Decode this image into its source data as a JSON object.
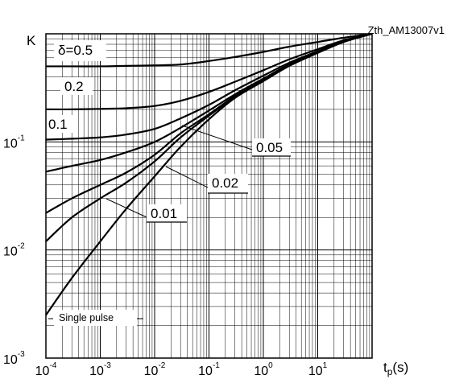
{
  "chart_data": {
    "type": "line",
    "id_label": "Zth_AM13007v1",
    "ylabel": "K",
    "xlabel": "tp(s)",
    "x_scale": "log",
    "y_scale": "log",
    "xlim": [
      0.0001,
      100
    ],
    "ylim": [
      0.001,
      1
    ],
    "grid": true,
    "x_ticks": [
      {
        "base": "10",
        "exp": "-4"
      },
      {
        "base": "10",
        "exp": "-3"
      },
      {
        "base": "10",
        "exp": "-2"
      },
      {
        "base": "10",
        "exp": "-1"
      },
      {
        "base": "10",
        "exp": "0"
      },
      {
        "base": "10",
        "exp": "1"
      }
    ],
    "y_ticks": [
      {
        "base": "10",
        "exp": "-1"
      },
      {
        "base": "10",
        "exp": "-2"
      },
      {
        "base": "10",
        "exp": "-3"
      }
    ],
    "x": [
      0.0001,
      0.0003,
      0.001,
      0.003,
      0.01,
      0.03,
      0.1,
      0.3,
      1,
      3,
      10,
      30,
      100
    ],
    "series": [
      {
        "name": "δ=0.5",
        "values": [
          0.5,
          0.5,
          0.5,
          0.505,
          0.51,
          0.52,
          0.56,
          0.61,
          0.68,
          0.76,
          0.84,
          0.92,
          1.0
        ]
      },
      {
        "name": "0.2",
        "values": [
          0.2,
          0.2,
          0.202,
          0.205,
          0.215,
          0.24,
          0.29,
          0.36,
          0.46,
          0.58,
          0.72,
          0.87,
          1.0
        ]
      },
      {
        "name": "0.1",
        "values": [
          0.105,
          0.107,
          0.11,
          0.117,
          0.132,
          0.165,
          0.22,
          0.3,
          0.41,
          0.54,
          0.69,
          0.86,
          1.0
        ]
      },
      {
        "name": "0.05",
        "values": [
          0.053,
          0.06,
          0.068,
          0.08,
          0.1,
          0.135,
          0.195,
          0.275,
          0.385,
          0.52,
          0.68,
          0.85,
          1.0
        ]
      },
      {
        "name": "0.02",
        "values": [
          0.022,
          0.03,
          0.04,
          0.052,
          0.076,
          0.12,
          0.18,
          0.265,
          0.375,
          0.515,
          0.675,
          0.85,
          1.0
        ]
      },
      {
        "name": "0.01",
        "values": [
          0.012,
          0.02,
          0.03,
          0.042,
          0.066,
          0.11,
          0.175,
          0.26,
          0.37,
          0.51,
          0.67,
          0.845,
          1.0
        ]
      },
      {
        "name": "Single pulse",
        "values": [
          0.0025,
          0.0055,
          0.012,
          0.024,
          0.048,
          0.09,
          0.162,
          0.255,
          0.365,
          0.505,
          0.665,
          0.84,
          1.0
        ]
      }
    ]
  }
}
